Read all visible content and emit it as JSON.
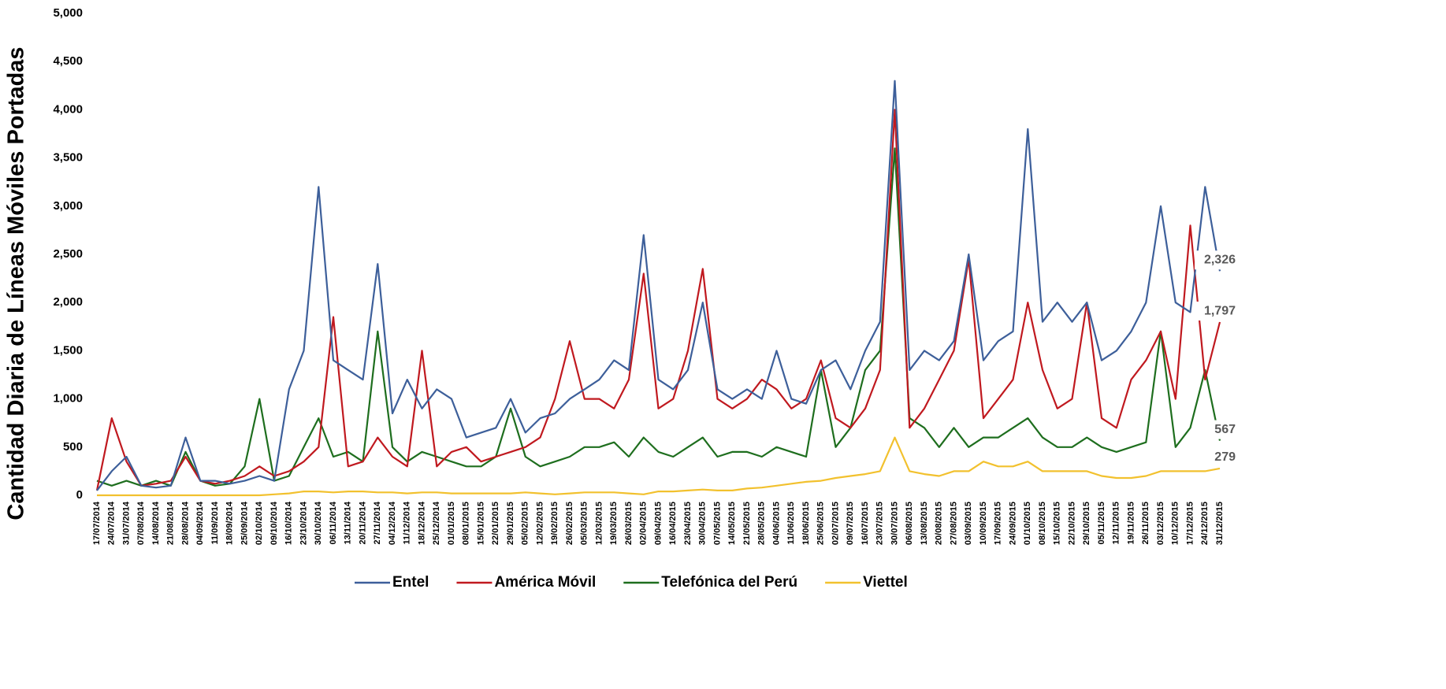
{
  "chart_data": {
    "type": "line",
    "y_label": "Cantidad Diaria de Líneas Móviles Portadas",
    "categories": [
      "17/07/2014",
      "24/07/2014",
      "31/07/2014",
      "07/08/2014",
      "14/08/2014",
      "21/08/2014",
      "28/08/2014",
      "04/09/2014",
      "11/09/2014",
      "18/09/2014",
      "25/09/2014",
      "02/10/2014",
      "09/10/2014",
      "16/10/2014",
      "23/10/2014",
      "30/10/2014",
      "06/11/2014",
      "13/11/2014",
      "20/11/2014",
      "27/11/2014",
      "04/12/2014",
      "11/12/2014",
      "18/12/2014",
      "25/12/2014",
      "01/01/2015",
      "08/01/2015",
      "15/01/2015",
      "22/01/2015",
      "29/01/2015",
      "05/02/2015",
      "12/02/2015",
      "19/02/2015",
      "26/02/2015",
      "05/03/2015",
      "12/03/2015",
      "19/03/2015",
      "26/03/2015",
      "02/04/2015",
      "09/04/2015",
      "16/04/2015",
      "23/04/2015",
      "30/04/2015",
      "07/05/2015",
      "14/05/2015",
      "21/05/2015",
      "28/05/2015",
      "04/06/2015",
      "11/06/2015",
      "18/06/2015",
      "25/06/2015",
      "02/07/2015",
      "09/07/2015",
      "16/07/2015",
      "23/07/2015",
      "30/07/2015",
      "06/08/2015",
      "13/08/2015",
      "20/08/2015",
      "27/08/2015",
      "03/09/2015",
      "10/09/2015",
      "17/09/2015",
      "24/09/2015",
      "01/10/2015",
      "08/10/2015",
      "15/10/2015",
      "22/10/2015",
      "29/10/2015",
      "05/11/2015",
      "12/11/2015",
      "19/11/2015",
      "26/11/2015",
      "03/12/2015",
      "10/12/2015",
      "17/12/2015",
      "24/12/2015",
      "31/12/2015"
    ],
    "series": [
      {
        "name": "Entel",
        "color": "#3d5f9a",
        "values": [
          50,
          250,
          400,
          100,
          80,
          100,
          600,
          150,
          150,
          120,
          150,
          200,
          150,
          1100,
          1500,
          3200,
          1400,
          1300,
          1200,
          2400,
          850,
          1200,
          900,
          1100,
          1000,
          600,
          650,
          700,
          1000,
          650,
          800,
          850,
          1000,
          1100,
          1200,
          1400,
          1300,
          2700,
          1200,
          1100,
          1300,
          2000,
          1100,
          1000,
          1100,
          1000,
          1500,
          1000,
          950,
          1300,
          1400,
          1100,
          1500,
          1800,
          4300,
          1300,
          1500,
          1400,
          1600,
          2500,
          1400,
          1600,
          1700,
          3800,
          1800,
          2000,
          1800,
          2000,
          1400,
          1500,
          1700,
          2000,
          3000,
          2000,
          1900,
          3200,
          2326
        ],
        "value_labels": {
          "76": "2,326"
        }
      },
      {
        "name": "América Móvil",
        "color": "#c0191f",
        "values": [
          50,
          800,
          350,
          100,
          120,
          150,
          400,
          150,
          120,
          150,
          200,
          300,
          200,
          250,
          350,
          500,
          1850,
          300,
          350,
          600,
          400,
          300,
          1500,
          300,
          450,
          500,
          350,
          400,
          450,
          500,
          600,
          1000,
          1600,
          1000,
          1000,
          900,
          1200,
          2300,
          900,
          1000,
          1500,
          2350,
          1000,
          900,
          1000,
          1200,
          1100,
          900,
          1000,
          1400,
          800,
          700,
          900,
          1300,
          4000,
          700,
          900,
          1200,
          1500,
          2450,
          800,
          1000,
          1200,
          2000,
          1300,
          900,
          1000,
          2000,
          800,
          700,
          1200,
          1400,
          1700,
          1000,
          2800,
          1200,
          1797
        ],
        "value_labels": {
          "76": "1,797"
        }
      },
      {
        "name": "Telefónica del Perú",
        "color": "#1e6e1e",
        "values": [
          150,
          100,
          150,
          100,
          150,
          100,
          450,
          150,
          100,
          120,
          300,
          1000,
          150,
          200,
          500,
          800,
          400,
          450,
          350,
          1700,
          500,
          350,
          450,
          400,
          350,
          300,
          300,
          400,
          900,
          400,
          300,
          350,
          400,
          500,
          500,
          550,
          400,
          600,
          450,
          400,
          500,
          600,
          400,
          450,
          450,
          400,
          500,
          450,
          400,
          1300,
          500,
          700,
          1300,
          1500,
          3600,
          800,
          700,
          500,
          700,
          500,
          600,
          600,
          700,
          800,
          600,
          500,
          500,
          600,
          500,
          450,
          500,
          550,
          1700,
          500,
          700,
          1300,
          567
        ]
      },
      {
        "name": "Viettel",
        "color": "#f2c12e",
        "values": [
          0,
          0,
          0,
          0,
          0,
          0,
          0,
          0,
          0,
          0,
          0,
          0,
          10,
          20,
          40,
          40,
          30,
          40,
          40,
          30,
          30,
          20,
          30,
          30,
          20,
          20,
          20,
          20,
          20,
          30,
          20,
          10,
          20,
          30,
          30,
          30,
          20,
          10,
          40,
          40,
          50,
          60,
          50,
          50,
          70,
          80,
          100,
          120,
          140,
          150,
          180,
          200,
          220,
          250,
          600,
          250,
          220,
          200,
          250,
          250,
          350,
          300,
          300,
          350,
          250,
          250,
          250,
          250,
          200,
          180,
          180,
          200,
          250,
          250,
          250,
          250,
          279
        ]
      }
    ],
    "ylim": [
      0,
      5000
    ],
    "yticks": [
      0,
      500,
      {
        "value": 1000,
        "label": "1,000"
      },
      {
        "value": 1500,
        "label": "1,500"
      },
      {
        "value": 2000,
        "label": "2,000"
      },
      {
        "value": 2500,
        "label": "2,500"
      },
      {
        "value": 3000,
        "label": "3,000"
      },
      {
        "value": 3500,
        "label": "3,500"
      },
      {
        "value": 4000,
        "label": "4,000"
      },
      {
        "value": 4500,
        "label": "4,500"
      },
      {
        "value": 5000,
        "label": "5,000"
      }
    ],
    "grid": false,
    "legend": "bottom"
  }
}
